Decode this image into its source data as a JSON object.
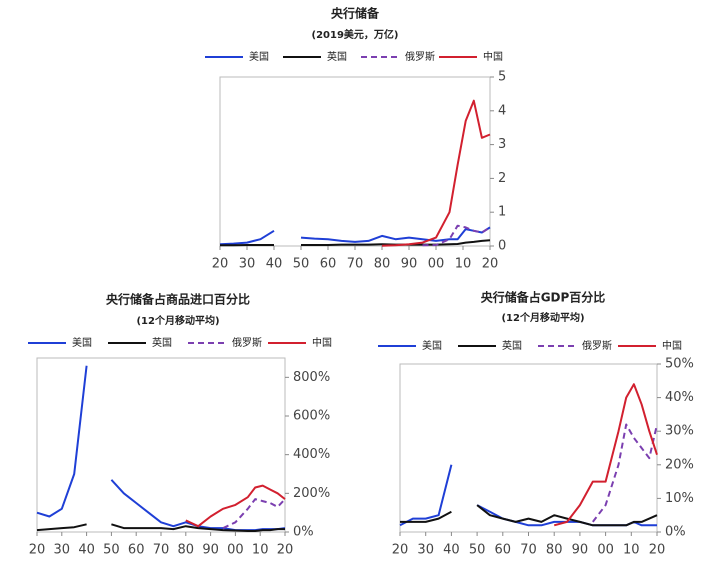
{
  "chart_data": [
    {
      "type": "line",
      "title": "央行储备",
      "subtitle": "(2019美元，万亿)",
      "x": [
        1920,
        1925,
        1930,
        1935,
        1940,
        1945,
        1950,
        1955,
        1960,
        1965,
        1970,
        1975,
        1980,
        1985,
        1990,
        1995,
        2000,
        2005,
        2008,
        2011,
        2014,
        2017,
        2020
      ],
      "xlim": [
        1920,
        2020
      ],
      "xticks": [
        {
          "value": 1920,
          "label": "20"
        },
        {
          "value": 1930,
          "label": "30"
        },
        {
          "value": 1940,
          "label": "40"
        },
        {
          "value": 1950,
          "label": "50"
        },
        {
          "value": 1960,
          "label": "60"
        },
        {
          "value": 1970,
          "label": "70"
        },
        {
          "value": 1980,
          "label": "80"
        },
        {
          "value": 1990,
          "label": "90"
        },
        {
          "value": 2000,
          "label": "00"
        },
        {
          "value": 2010,
          "label": "10"
        },
        {
          "value": 2020,
          "label": "20"
        }
      ],
      "ylim": [
        0,
        5
      ],
      "yticks": [
        0,
        1,
        2,
        3,
        4,
        5
      ],
      "series": [
        {
          "name": "美国",
          "color": "#1f3fd6",
          "dash": false,
          "values": [
            0.05,
            0.07,
            0.1,
            0.2,
            0.45,
            null,
            0.25,
            0.22,
            0.2,
            0.15,
            0.12,
            0.15,
            0.3,
            0.2,
            0.25,
            0.2,
            0.15,
            0.2,
            0.2,
            0.5,
            0.45,
            0.4,
            0.55
          ]
        },
        {
          "name": "英国",
          "color": "#111111",
          "dash": false,
          "values": [
            0.02,
            0.02,
            0.03,
            0.03,
            0.03,
            null,
            0.03,
            0.03,
            0.03,
            0.04,
            0.04,
            0.04,
            0.05,
            0.04,
            0.04,
            0.04,
            0.04,
            0.05,
            0.06,
            0.1,
            0.12,
            0.15,
            0.17
          ]
        },
        {
          "name": "俄罗斯",
          "color": "#7b3fb0",
          "dash": true,
          "values": [
            null,
            null,
            null,
            null,
            null,
            null,
            null,
            null,
            null,
            null,
            null,
            null,
            null,
            null,
            null,
            0.02,
            0.03,
            0.2,
            0.6,
            0.55,
            0.45,
            0.4,
            0.55
          ]
        },
        {
          "name": "中国",
          "color": "#d2202f",
          "dash": false,
          "values": [
            null,
            null,
            null,
            null,
            null,
            null,
            null,
            null,
            null,
            null,
            null,
            null,
            0.01,
            0.02,
            0.05,
            0.1,
            0.25,
            1.0,
            2.4,
            3.7,
            4.3,
            3.2,
            3.3
          ]
        }
      ]
    },
    {
      "type": "line",
      "title": "央行储备占商品进口百分比",
      "subtitle": "(12个月移动平均)",
      "x": [
        1920,
        1925,
        1930,
        1935,
        1940,
        1945,
        1950,
        1955,
        1960,
        1965,
        1970,
        1975,
        1980,
        1985,
        1990,
        1995,
        2000,
        2005,
        2008,
        2011,
        2014,
        2017,
        2020
      ],
      "xlim": [
        1920,
        2020
      ],
      "xticks": [
        {
          "value": 1920,
          "label": "20"
        },
        {
          "value": 1930,
          "label": "30"
        },
        {
          "value": 1940,
          "label": "40"
        },
        {
          "value": 1950,
          "label": "50"
        },
        {
          "value": 1960,
          "label": "60"
        },
        {
          "value": 1970,
          "label": "70"
        },
        {
          "value": 1980,
          "label": "80"
        },
        {
          "value": 1990,
          "label": "90"
        },
        {
          "value": 2000,
          "label": "00"
        },
        {
          "value": 2010,
          "label": "10"
        },
        {
          "value": 2020,
          "label": "20"
        }
      ],
      "ylim": [
        0,
        900
      ],
      "yticks": [
        {
          "value": 0,
          "label": "0%"
        },
        {
          "value": 200,
          "label": "200%"
        },
        {
          "value": 400,
          "label": "400%"
        },
        {
          "value": 600,
          "label": "600%"
        },
        {
          "value": 800,
          "label": "800%"
        }
      ],
      "series": [
        {
          "name": "美国",
          "color": "#1f3fd6",
          "dash": false,
          "values": [
            100,
            80,
            120,
            300,
            860,
            null,
            270,
            200,
            150,
            100,
            50,
            30,
            50,
            30,
            20,
            20,
            10,
            10,
            10,
            15,
            15,
            15,
            20
          ]
        },
        {
          "name": "英国",
          "color": "#111111",
          "dash": false,
          "values": [
            10,
            15,
            20,
            25,
            40,
            null,
            40,
            20,
            20,
            20,
            20,
            15,
            30,
            20,
            15,
            10,
            8,
            5,
            5,
            10,
            10,
            15,
            15
          ]
        },
        {
          "name": "俄罗斯",
          "color": "#7b3fb0",
          "dash": true,
          "values": [
            null,
            null,
            null,
            null,
            null,
            null,
            null,
            null,
            null,
            null,
            null,
            null,
            null,
            null,
            null,
            20,
            50,
            120,
            170,
            160,
            150,
            130,
            170
          ]
        },
        {
          "name": "中国",
          "color": "#d2202f",
          "dash": false,
          "values": [
            null,
            null,
            null,
            null,
            null,
            null,
            null,
            null,
            null,
            null,
            null,
            null,
            60,
            30,
            80,
            120,
            140,
            180,
            230,
            240,
            220,
            200,
            170
          ]
        }
      ]
    },
    {
      "type": "line",
      "title": "央行储备占GDP百分比",
      "subtitle": "(12个月移动平均)",
      "x": [
        1920,
        1925,
        1930,
        1935,
        1940,
        1945,
        1950,
        1955,
        1960,
        1965,
        1970,
        1975,
        1980,
        1985,
        1990,
        1995,
        2000,
        2005,
        2008,
        2011,
        2014,
        2017,
        2020
      ],
      "xlim": [
        1920,
        2020
      ],
      "xticks": [
        {
          "value": 1920,
          "label": "20"
        },
        {
          "value": 1930,
          "label": "30"
        },
        {
          "value": 1940,
          "label": "40"
        },
        {
          "value": 1950,
          "label": "50"
        },
        {
          "value": 1960,
          "label": "60"
        },
        {
          "value": 1970,
          "label": "70"
        },
        {
          "value": 1980,
          "label": "80"
        },
        {
          "value": 1990,
          "label": "90"
        },
        {
          "value": 2000,
          "label": "00"
        },
        {
          "value": 2010,
          "label": "10"
        },
        {
          "value": 2020,
          "label": "20"
        }
      ],
      "ylim": [
        0,
        50
      ],
      "yticks": [
        {
          "value": 0,
          "label": "0%"
        },
        {
          "value": 10,
          "label": "10%"
        },
        {
          "value": 20,
          "label": "20%"
        },
        {
          "value": 30,
          "label": "30%"
        },
        {
          "value": 40,
          "label": "40%"
        },
        {
          "value": 50,
          "label": "50%"
        }
      ],
      "series": [
        {
          "name": "美国",
          "color": "#1f3fd6",
          "dash": false,
          "values": [
            2,
            4,
            4,
            5,
            20,
            null,
            8,
            6,
            4,
            3,
            2,
            2,
            3,
            3,
            3,
            2,
            2,
            2,
            2,
            3,
            2,
            2,
            2
          ]
        },
        {
          "name": "英国",
          "color": "#111111",
          "dash": false,
          "values": [
            3,
            3,
            3,
            4,
            6,
            null,
            8,
            5,
            4,
            3,
            4,
            3,
            5,
            4,
            3,
            2,
            2,
            2,
            2,
            3,
            3,
            4,
            5
          ]
        },
        {
          "name": "俄罗斯",
          "color": "#7b3fb0",
          "dash": true,
          "values": [
            null,
            null,
            null,
            null,
            null,
            null,
            null,
            null,
            null,
            null,
            null,
            null,
            null,
            null,
            null,
            3,
            8,
            20,
            32,
            28,
            25,
            22,
            32
          ]
        },
        {
          "name": "中国",
          "color": "#d2202f",
          "dash": false,
          "values": [
            null,
            null,
            null,
            null,
            null,
            null,
            null,
            null,
            null,
            null,
            null,
            null,
            2,
            3,
            8,
            15,
            15,
            30,
            40,
            44,
            38,
            30,
            23
          ]
        }
      ]
    }
  ]
}
